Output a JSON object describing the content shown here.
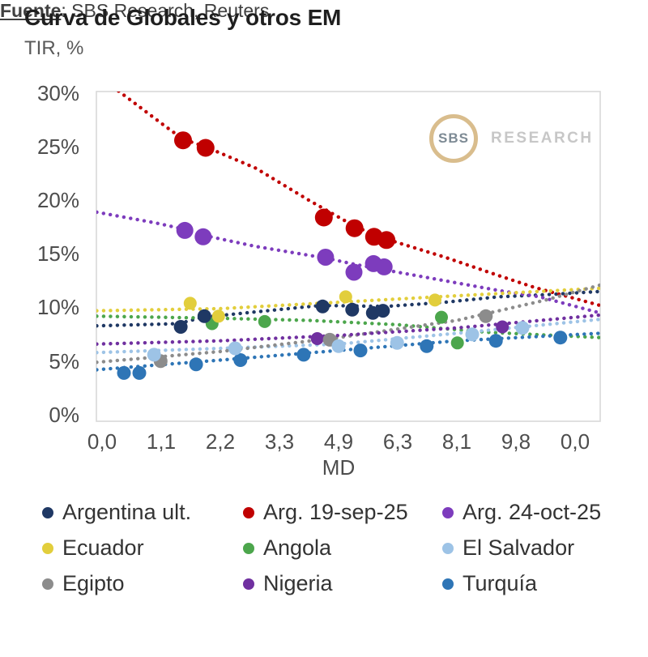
{
  "logo": {
    "circle_text": "SBS",
    "text": "RESEARCH"
  },
  "footer": {
    "source_label": "Fuente",
    "source_rest": ": SBS Research, Reuters"
  },
  "chart_data": {
    "type": "scatter",
    "title": "Curva de Globales y otros EM",
    "ylabel": "TIR, %",
    "xlabel": "MD",
    "ylim": [
      0,
      30
    ],
    "grid": false,
    "legend_position": "bottom",
    "y_tick_labels": [
      "30%",
      "25%",
      "20%",
      "15%",
      "10%",
      "5%",
      "0%"
    ],
    "x_tick_labels": [
      "0,0",
      "1,1",
      "2,2",
      "3,3",
      "4,9",
      "6,3",
      "8,1",
      "9,8",
      "0,0"
    ],
    "axis_note": "x in MD (tick-index units vs labels above); points/trend pairs are [tick_index, TIR_%]",
    "series": [
      {
        "name": "Argentina ult.",
        "color": "#1f3864",
        "marker_radius": 8.5,
        "points": [
          [
            1.33,
            8.2
          ],
          [
            1.73,
            9.2
          ],
          [
            3.73,
            10.1
          ],
          [
            4.23,
            9.8
          ],
          [
            4.58,
            9.5
          ],
          [
            4.75,
            9.7
          ]
        ],
        "trend": [
          [
            -0.09,
            8.3
          ],
          [
            1.3,
            8.5
          ],
          [
            1.7,
            9.1
          ],
          [
            2.6,
            9.6
          ],
          [
            3.7,
            10.2
          ],
          [
            4.8,
            10.1
          ],
          [
            5.8,
            10.5
          ],
          [
            6.7,
            11.0
          ],
          [
            7.5,
            11.2
          ],
          [
            8.42,
            11.5
          ]
        ]
      },
      {
        "name": "Arg. 19-sep-25",
        "color": "#c00000",
        "marker_radius": 11,
        "points": [
          [
            1.37,
            25.6
          ],
          [
            1.75,
            24.9
          ],
          [
            3.75,
            18.4
          ],
          [
            4.27,
            17.4
          ],
          [
            4.6,
            16.6
          ],
          [
            4.81,
            16.3
          ]
        ],
        "trend": [
          [
            0.28,
            30.2
          ],
          [
            1.0,
            27.2
          ],
          [
            1.37,
            25.7
          ],
          [
            1.75,
            25.0
          ],
          [
            2.6,
            23.0
          ],
          [
            3.5,
            20.0
          ],
          [
            4.3,
            17.5
          ],
          [
            4.8,
            16.4
          ],
          [
            5.8,
            14.7
          ],
          [
            6.7,
            13.0
          ],
          [
            7.3,
            11.9
          ],
          [
            8.42,
            10.2
          ]
        ]
      },
      {
        "name": "Arg. 24-oct-25",
        "color": "#7d3cbd",
        "marker_radius": 10.5,
        "points": [
          [
            1.4,
            17.2
          ],
          [
            1.71,
            16.6
          ],
          [
            3.78,
            14.7
          ],
          [
            4.26,
            13.3
          ],
          [
            4.59,
            14.1
          ],
          [
            4.77,
            13.8
          ]
        ],
        "trend": [
          [
            -0.09,
            18.9
          ],
          [
            0.9,
            17.9
          ],
          [
            1.4,
            17.3
          ],
          [
            1.75,
            16.7
          ],
          [
            2.6,
            15.7
          ],
          [
            3.8,
            14.6
          ],
          [
            4.3,
            14.0
          ],
          [
            4.9,
            13.4
          ],
          [
            5.8,
            12.5
          ],
          [
            6.7,
            11.6
          ],
          [
            7.4,
            11.0
          ],
          [
            8.42,
            9.5
          ]
        ]
      },
      {
        "name": "Ecuador",
        "color": "#e2ce3c",
        "marker_radius": 8,
        "points": [
          [
            1.49,
            10.4
          ],
          [
            1.97,
            9.2
          ],
          [
            4.12,
            11.0
          ],
          [
            5.63,
            10.7
          ]
        ],
        "trend": [
          [
            -0.09,
            9.7
          ],
          [
            2,
            9.9
          ],
          [
            4,
            10.5
          ],
          [
            6,
            11.1
          ],
          [
            8.42,
            11.8
          ]
        ]
      },
      {
        "name": "Angola",
        "color": "#4ca64c",
        "marker_radius": 8,
        "points": [
          [
            1.86,
            8.5
          ],
          [
            2.75,
            8.7
          ],
          [
            5.74,
            9.1
          ],
          [
            6.01,
            6.7
          ]
        ],
        "trend": [
          [
            -0.09,
            9.2
          ],
          [
            2,
            9.0
          ],
          [
            3.5,
            8.8
          ],
          [
            5,
            8.4
          ],
          [
            6.5,
            7.7
          ],
          [
            8.42,
            7.2
          ]
        ]
      },
      {
        "name": "El Salvador",
        "color": "#9dc3e6",
        "marker_radius": 8.5,
        "points": [
          [
            0.88,
            5.6
          ],
          [
            2.25,
            6.2
          ],
          [
            4.0,
            6.4
          ],
          [
            4.99,
            6.7
          ],
          [
            6.26,
            7.5
          ],
          [
            7.11,
            8.1
          ]
        ],
        "trend": [
          [
            -0.09,
            5.8
          ],
          [
            2,
            6.2
          ],
          [
            4,
            6.6
          ],
          [
            6,
            7.6
          ],
          [
            8.42,
            8.9
          ]
        ]
      },
      {
        "name": "Egipto",
        "color": "#8c8c8c",
        "marker_radius": 8.5,
        "points": [
          [
            0.99,
            5.0
          ],
          [
            3.85,
            7.0
          ],
          [
            6.49,
            9.2
          ]
        ],
        "trend": [
          [
            -0.09,
            4.9
          ],
          [
            2,
            5.9
          ],
          [
            4,
            7.2
          ],
          [
            6,
            8.8
          ],
          [
            7.5,
            10.7
          ],
          [
            8.42,
            12.1
          ]
        ]
      },
      {
        "name": "Nigeria",
        "color": "#7030a0",
        "marker_radius": 8,
        "points": [
          [
            3.64,
            7.1
          ],
          [
            6.77,
            8.2
          ]
        ],
        "trend": [
          [
            -0.09,
            6.6
          ],
          [
            2,
            6.9
          ],
          [
            4,
            7.4
          ],
          [
            6,
            8.1
          ],
          [
            8.42,
            9.3
          ]
        ]
      },
      {
        "name": "Turquía",
        "color": "#2e75b6",
        "marker_radius": 8.5,
        "points": [
          [
            0.37,
            3.9
          ],
          [
            0.63,
            3.9
          ],
          [
            1.59,
            4.7
          ],
          [
            2.34,
            5.1
          ],
          [
            3.41,
            5.6
          ],
          [
            4.37,
            6.0
          ],
          [
            5.49,
            6.4
          ],
          [
            6.66,
            6.9
          ],
          [
            7.75,
            7.2
          ]
        ],
        "trend": [
          [
            -0.09,
            4.2
          ],
          [
            2,
            5.1
          ],
          [
            4,
            6.0
          ],
          [
            6,
            6.9
          ],
          [
            8.42,
            7.6
          ]
        ]
      }
    ]
  }
}
